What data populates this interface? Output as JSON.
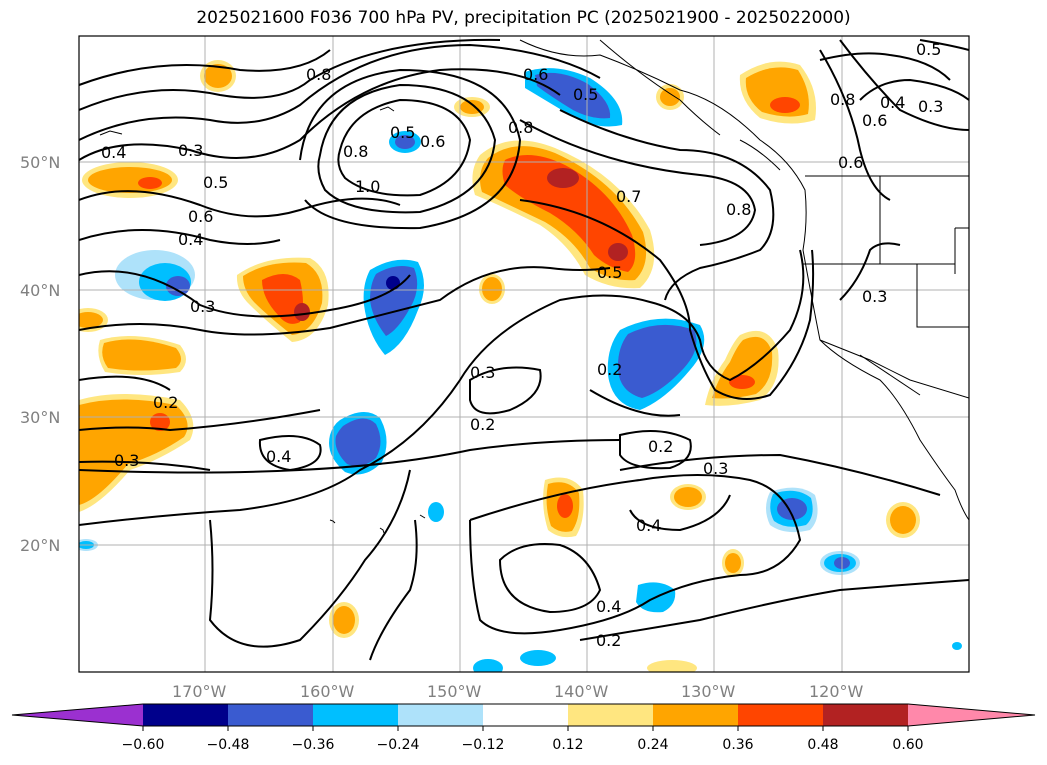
{
  "title": "2025021600 F036 700 hPa PV, precipitation PC (2025021900 - 2025022000)",
  "latitude_labels": [
    "50°N",
    "40°N",
    "30°N",
    "20°N"
  ],
  "longitude_labels": [
    "170°W",
    "160°W",
    "150°W",
    "140°W",
    "130°W",
    "120°W"
  ],
  "contour_labels": [
    "0.8",
    "0.6",
    "0.5",
    "0.4",
    "0.3",
    "0.5",
    "0.6",
    "0.4",
    "0.5",
    "0.6",
    "0.8",
    "1.0",
    "0.8",
    "0.7",
    "0.8",
    "0.6",
    "0.8",
    "0.5",
    "0.6",
    "0.4",
    "0.3",
    "0.5",
    "0.3",
    "0.3",
    "0.2",
    "0.2",
    "0.3",
    "0.2",
    "0.4",
    "0.3",
    "0.2",
    "0.4",
    "0.2",
    "0.4",
    "0.3"
  ],
  "colorbar": {
    "ticks": [
      "−0.60",
      "−0.48",
      "−0.36",
      "−0.24",
      "−0.12",
      "0.12",
      "0.24",
      "0.36",
      "0.48",
      "0.60"
    ],
    "colors": [
      "#9b30d0",
      "#00008b",
      "#3a5bd0",
      "#00bfff",
      "#aee2fa",
      "#ffffff",
      "#ffe680",
      "#ffa500",
      "#ff4500",
      "#b22222",
      "#ff88aa"
    ]
  }
}
